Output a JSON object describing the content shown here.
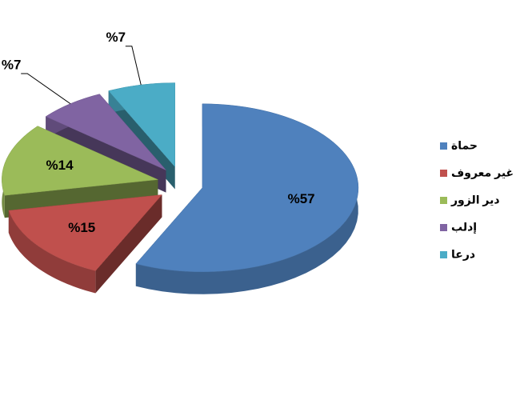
{
  "chart_data": {
    "type": "pie",
    "categories": [
      "حماة",
      "غير معروف",
      "دير الزور",
      "إدلب",
      "درعا"
    ],
    "values": [
      57,
      15,
      14,
      7,
      7
    ],
    "value_labels": [
      "%57",
      "%15",
      "%14",
      "%7",
      "%7"
    ],
    "colors": [
      "#4f81bd",
      "#c0504d",
      "#9bbb59",
      "#8064a2",
      "#4bacc6"
    ],
    "exploded": true,
    "legend": "right"
  }
}
